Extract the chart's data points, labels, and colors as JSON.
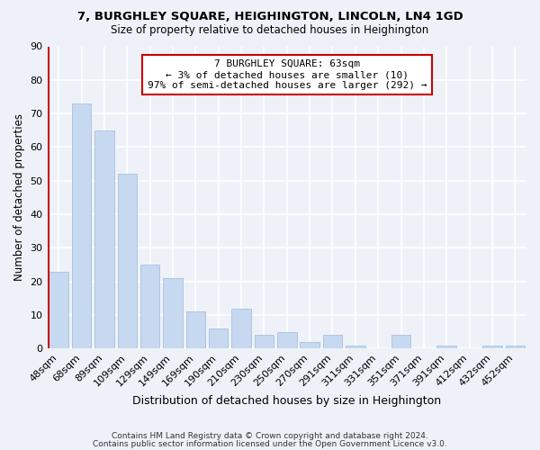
{
  "title": "7, BURGHLEY SQUARE, HEIGHINGTON, LINCOLN, LN4 1GD",
  "subtitle": "Size of property relative to detached houses in Heighington",
  "xlabel": "Distribution of detached houses by size in Heighington",
  "ylabel": "Number of detached properties",
  "footer_line1": "Contains HM Land Registry data © Crown copyright and database right 2024.",
  "footer_line2": "Contains public sector information licensed under the Open Government Licence v3.0.",
  "categories": [
    "48sqm",
    "68sqm",
    "89sqm",
    "109sqm",
    "129sqm",
    "149sqm",
    "169sqm",
    "190sqm",
    "210sqm",
    "230sqm",
    "250sqm",
    "270sqm",
    "291sqm",
    "311sqm",
    "331sqm",
    "351sqm",
    "371sqm",
    "391sqm",
    "412sqm",
    "432sqm",
    "452sqm"
  ],
  "values": [
    23,
    73,
    65,
    52,
    25,
    21,
    11,
    6,
    12,
    4,
    5,
    2,
    4,
    1,
    0,
    4,
    0,
    1,
    0,
    1,
    1
  ],
  "bar_color": "#c6d9f0",
  "bar_edge_color": "#a0b8d8",
  "highlight_color": "#cc0000",
  "ylim": [
    0,
    90
  ],
  "yticks": [
    0,
    10,
    20,
    30,
    40,
    50,
    60,
    70,
    80,
    90
  ],
  "annotation_title": "7 BURGHLEY SQUARE: 63sqm",
  "annotation_line1": "← 3% of detached houses are smaller (10)",
  "annotation_line2": "97% of semi-detached houses are larger (292) →",
  "annotation_box_color": "#ffffff",
  "annotation_box_edge": "#cc0000",
  "bg_color": "#eef2f8"
}
